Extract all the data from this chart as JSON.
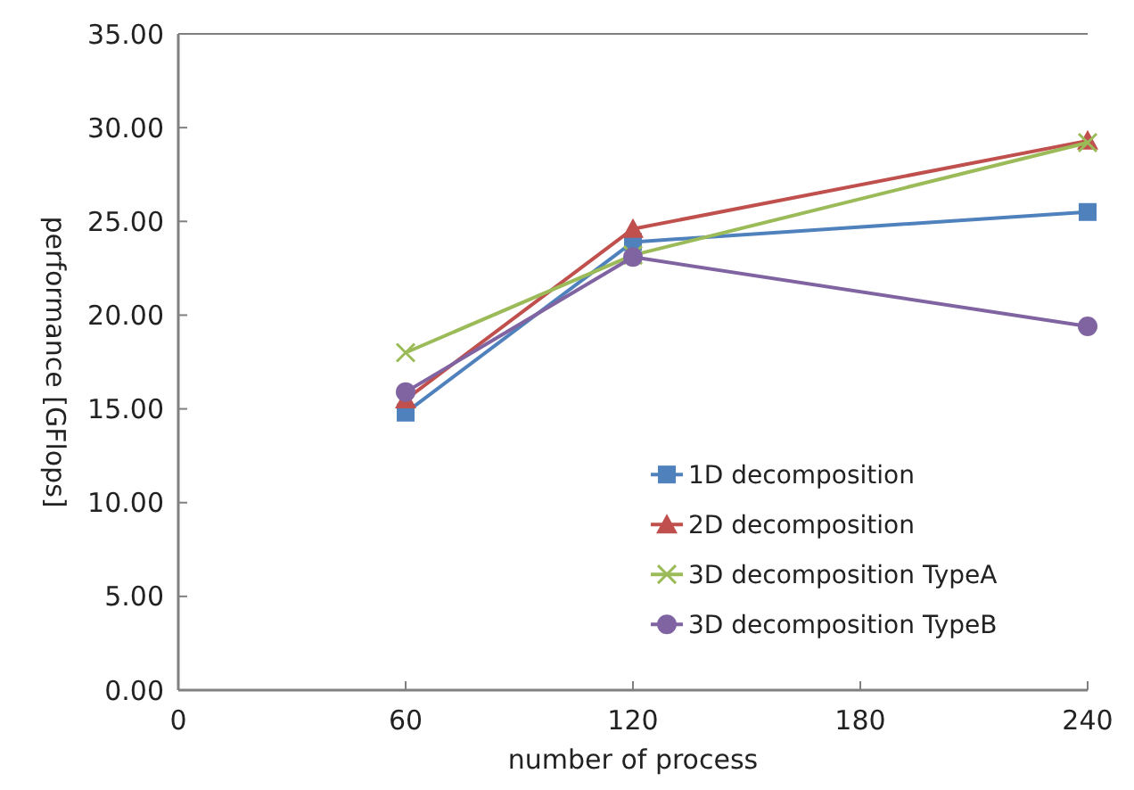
{
  "chart_data": {
    "type": "line",
    "xlabel": "number of process",
    "ylabel": "performance [GFlops]",
    "x": [
      60,
      120,
      240
    ],
    "xlim": [
      0,
      240
    ],
    "xticks": [
      0,
      60,
      120,
      180,
      240
    ],
    "ylim": [
      0,
      35
    ],
    "yticks": [
      {
        "value": 0,
        "label": "0.00"
      },
      {
        "value": 5,
        "label": "5.00"
      },
      {
        "value": 10,
        "label": "10.00"
      },
      {
        "value": 15,
        "label": "15.00"
      },
      {
        "value": 20,
        "label": "20.00"
      },
      {
        "value": 25,
        "label": "25.00"
      },
      {
        "value": 30,
        "label": "30.00"
      },
      {
        "value": 35,
        "label": "35.00"
      }
    ],
    "legend": "bottom right",
    "grid": false,
    "series": [
      {
        "name": "1D decomposition",
        "color": "#4f81bd",
        "marker": "square",
        "values": [
          14.8,
          23.9,
          25.5
        ]
      },
      {
        "name": "2D decomposition",
        "color": "#c0504d",
        "marker": "triangle",
        "values": [
          15.5,
          24.6,
          29.3
        ]
      },
      {
        "name": "3D decomposition TypeA",
        "color": "#9bbb59",
        "marker": "cross",
        "values": [
          18.0,
          23.2,
          29.2
        ]
      },
      {
        "name": "3D decomposition TypeB",
        "color": "#8064a2",
        "marker": "circle",
        "values": [
          15.9,
          23.1,
          19.4
        ]
      }
    ]
  }
}
